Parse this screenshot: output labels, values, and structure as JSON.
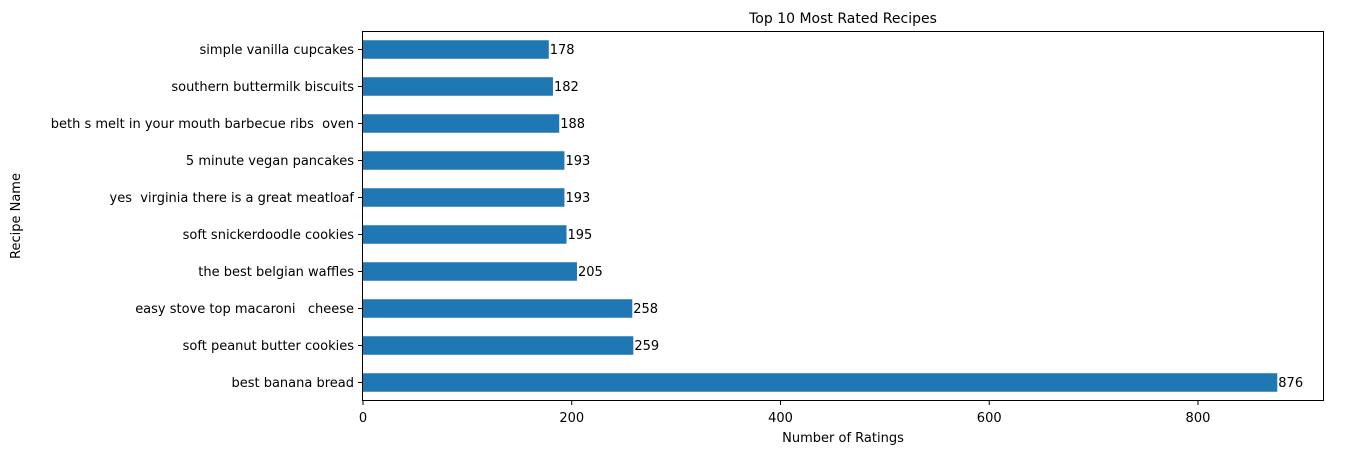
{
  "chart_data": {
    "type": "bar",
    "orientation": "horizontal",
    "title": "Top 10 Most Rated Recipes",
    "xlabel": "Number of Ratings",
    "ylabel": "Recipe Name",
    "xlim": [
      0,
      919.8
    ],
    "xticks": [
      0,
      200,
      400,
      600,
      800
    ],
    "grid": false,
    "bar_color": "#1f77b4",
    "categories": [
      "best banana bread",
      "soft peanut butter cookies",
      "easy stove top macaroni   cheese",
      "the best belgian waffles",
      "soft snickerdoodle cookies",
      "yes  virginia there is a great meatloaf",
      "5 minute vegan pancakes",
      "beth s melt in your mouth barbecue ribs  oven",
      "southern buttermilk biscuits",
      "simple vanilla cupcakes"
    ],
    "values": [
      876,
      259,
      258,
      205,
      195,
      193,
      193,
      188,
      182,
      178
    ]
  }
}
